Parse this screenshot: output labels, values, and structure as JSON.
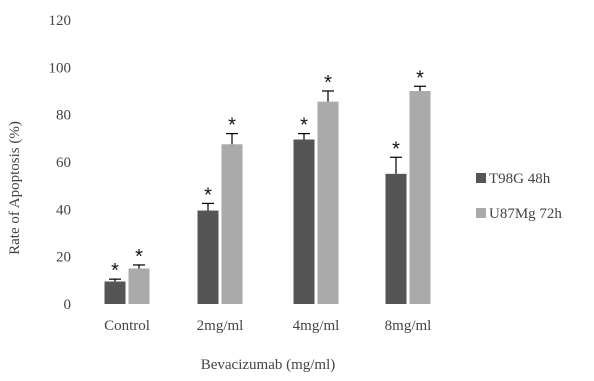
{
  "chart_data": {
    "type": "bar",
    "title": "",
    "xlabel": "Bevacizumab (mg/ml)",
    "ylabel": "Rate of Apoptosis (%)",
    "ylim": [
      0,
      120
    ],
    "yticks": [
      0,
      20,
      40,
      60,
      80,
      100,
      120
    ],
    "grid": false,
    "legend_position": "right",
    "categories": [
      "Control",
      "2mg/ml",
      "4mg/ml",
      "8mg/ml"
    ],
    "series": [
      {
        "name": "T98G 48h",
        "color": "#555555",
        "values": [
          9.5,
          39.5,
          69.5,
          55
        ],
        "errors": [
          1,
          3,
          2.5,
          7
        ],
        "significance": [
          "*",
          "*",
          "*",
          "*"
        ]
      },
      {
        "name": "U87Mg 72h",
        "color": "#aaaaaa",
        "values": [
          15,
          67.5,
          85.5,
          90
        ],
        "errors": [
          1.5,
          4.5,
          4.5,
          2
        ],
        "significance": [
          "*",
          "*",
          "*",
          "*"
        ]
      }
    ]
  }
}
